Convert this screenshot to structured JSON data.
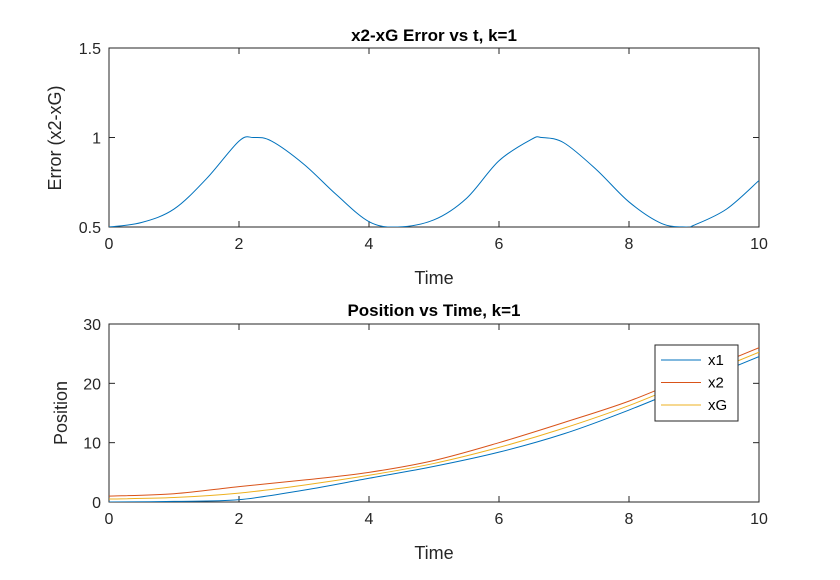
{
  "chart_data": [
    {
      "type": "line",
      "title": "x2-xG Error vs t, k=1",
      "xlabel": "Time",
      "ylabel": "Error (x2-xG)",
      "xlim": [
        0,
        10
      ],
      "ylim": [
        0.5,
        1.5
      ],
      "xticks": [
        "0",
        "2",
        "4",
        "6",
        "8",
        "10"
      ],
      "yticks": [
        "0.5",
        "1",
        "1.5"
      ],
      "grid": false,
      "series": [
        {
          "color": "#0072BD",
          "x": [
            0,
            0.5,
            1,
            1.5,
            2,
            2.22,
            2.5,
            3,
            3.5,
            4,
            4.44,
            5,
            5.5,
            6,
            6.5,
            6.66,
            7,
            7.5,
            8,
            8.5,
            8.88,
            9,
            9.5,
            10
          ],
          "y": [
            0.5,
            0.525,
            0.6,
            0.77,
            0.98,
            1.0,
            0.98,
            0.85,
            0.68,
            0.53,
            0.5,
            0.54,
            0.66,
            0.87,
            0.99,
            1.0,
            0.97,
            0.82,
            0.64,
            0.52,
            0.5,
            0.51,
            0.6,
            0.76
          ]
        }
      ]
    },
    {
      "type": "line",
      "title": "Position vs Time, k=1",
      "xlabel": "Time",
      "ylabel": "Position",
      "xlim": [
        0,
        10
      ],
      "ylim": [
        0,
        30
      ],
      "xticks": [
        "0",
        "2",
        "4",
        "6",
        "8",
        "10"
      ],
      "yticks": [
        "0",
        "10",
        "20",
        "30"
      ],
      "grid": false,
      "legend_position": "top-right",
      "series": [
        {
          "name": "x1",
          "color": "#0072BD",
          "x": [
            0,
            1,
            2,
            3,
            4,
            5,
            6,
            7,
            8,
            9,
            10
          ],
          "y": [
            0.0,
            0.1,
            0.4,
            2.0,
            4.0,
            6.0,
            8.4,
            11.5,
            15.5,
            20.0,
            24.5
          ]
        },
        {
          "name": "x2",
          "color": "#D95319",
          "x": [
            0,
            1,
            2,
            3,
            4,
            5,
            6,
            7,
            8,
            9,
            10
          ],
          "y": [
            1.0,
            1.4,
            2.6,
            3.7,
            5.0,
            7.0,
            10.0,
            13.4,
            17.0,
            21.5,
            26.0
          ]
        },
        {
          "name": "xG",
          "color": "#EDB120",
          "x": [
            0,
            1,
            2,
            3,
            4,
            5,
            6,
            7,
            8,
            9,
            10
          ],
          "y": [
            0.5,
            0.75,
            1.5,
            2.85,
            4.5,
            6.5,
            9.2,
            12.45,
            16.25,
            20.75,
            25.25
          ]
        }
      ]
    }
  ]
}
